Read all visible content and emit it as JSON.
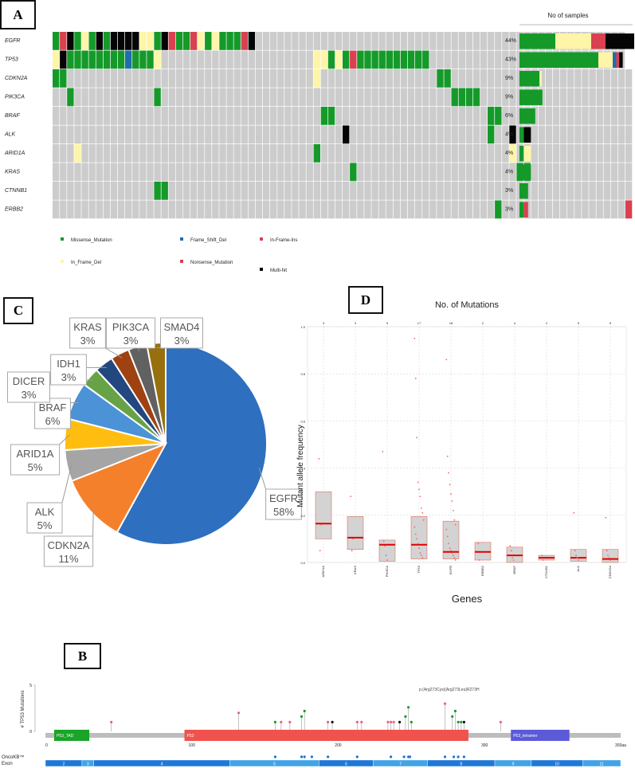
{
  "panels": {
    "A": "A",
    "B": "B",
    "C": "C",
    "D": "D"
  },
  "oncoplot": {
    "genes": [
      "EGFR",
      "TP53",
      "CDKN2A",
      "PIK3CA",
      "BRAF",
      "ALK",
      "ARID1A",
      "KRAS",
      "CTNNB1",
      "ERBB2"
    ],
    "percent": [
      "44%",
      "43%",
      "9%",
      "9%",
      "6%",
      "4%",
      "4%",
      "4%",
      "3%",
      "3%"
    ],
    "bar_title": "No of samples",
    "bars": [
      {
        "gene": "EGFR",
        "segments": [
          {
            "type": "Missense_Mutation",
            "n": 5
          },
          {
            "type": "In_Frame_Del",
            "n": 5
          },
          {
            "type": "Nonsense_Mutation",
            "n": 2
          },
          {
            "type": "Multi-hit",
            "n": 4
          }
        ]
      },
      {
        "gene": "TP53",
        "segments": [
          {
            "type": "Missense_Mutation",
            "n": 11
          },
          {
            "type": "In_Frame_Del",
            "n": 2
          },
          {
            "type": "Frame_Shift_Del",
            "n": 0.5
          },
          {
            "type": "Nonsense_Mutation",
            "n": 0.4
          },
          {
            "type": "Multi-hit",
            "n": 0.5
          }
        ]
      },
      {
        "gene": "CDKN2A",
        "segments": [
          {
            "type": "Missense_Mutation",
            "n": 2.8
          },
          {
            "type": "In_Frame_Del",
            "n": 0.3
          }
        ]
      },
      {
        "gene": "PIK3CA",
        "segments": [
          {
            "type": "Missense_Mutation",
            "n": 3.2
          }
        ]
      },
      {
        "gene": "BRAF",
        "segments": [
          {
            "type": "Missense_Mutation",
            "n": 2.2
          }
        ]
      },
      {
        "gene": "ALK",
        "segments": [
          {
            "type": "Missense_Mutation",
            "n": 0.6
          },
          {
            "type": "Multi-hit",
            "n": 1
          }
        ]
      },
      {
        "gene": "ARID1A",
        "segments": [
          {
            "type": "Missense_Mutation",
            "n": 0.6
          },
          {
            "type": "In_Frame_Del",
            "n": 1
          }
        ]
      },
      {
        "gene": "KRAS",
        "segments": [
          {
            "type": "Missense_Mutation",
            "n": 1.6
          }
        ]
      },
      {
        "gene": "CTNNB1",
        "segments": [
          {
            "type": "Missense_Mutation",
            "n": 1.2
          }
        ]
      },
      {
        "gene": "ERBB2",
        "segments": [
          {
            "type": "Missense_Mutation",
            "n": 0.6
          },
          {
            "type": "Nonsense_Mutation",
            "n": 0.6
          }
        ]
      }
    ],
    "legend": [
      {
        "label": "Missense_Mutation",
        "type": "Missense_Mutation"
      },
      {
        "label": "Frame_Shift_Del",
        "type": "Frame_Shift_Del"
      },
      {
        "label": "In-Frame-Ins",
        "type": "Nonsense_Mutation"
      },
      {
        "label": "In_Frame_Del",
        "type": "In_Frame_Del"
      },
      {
        "label": "Nonsense_Mutation",
        "type": "Nonsense_Mutation"
      },
      {
        "label": "Multi-hit",
        "type": "Multi-hit"
      }
    ],
    "colors": {
      "Missense_Mutation": "#159a2a",
      "In_Frame_Del": "#fff5a8",
      "Frame_Shift_Del": "#1f6db0",
      "Nonsense_Mutation": "#d94150",
      "Multi-hit": "#050505",
      "none": "#cccccc"
    },
    "matrix": [
      "GRKGWGKGKKKKWWGKRGGRWGWGGGRKNNNNNNNNNNNNNNNNNNNNNNNNNNNNNNNNNNNNNNNNNNNNNNNNNNN",
      "WKGGGGGGGGFGGGWNNNNNNNNNNNNNNNNNNNNNWWGWGRGGGGGGGGGGNNNNNNNNNNNNNNNNNNNNNNNNNNN",
      "GGNNNNNNNNNNNNNNNNNNNNNNNNNNNNNNNNNNWNNNNNNNNNNNNNNNNGGNNNNNNNNNNNNNNNNNNNNNNNNN",
      "NNGNNNNNNNNNNNGNNNNNNNNNNNNNNNNNNNNNNNNNNNNNNNNNNNNNNNNGGGGNNNNNNNNNNNNNNNNNNNNN",
      "NNNNNNNNNNNNNNNNNNNNNNNNNNNNNNNNNNNNNGGNNNNNNNNNNNNNNNNNNNNNGGNNNNNNNNNNNNNNNNNN",
      "NNNNNNNNNNNNNNNNNNNNNNNNNNNNNNNNNNNNNNNNKNNNNNNNNNNNNNNNNNNNGNNKNNNNNNNNNNNNNNNN",
      "NNNWNNNNNNNNNNNNNNNNNNNNNNNNNNNNNNNNGNNNNNNNNNNNNNNNNNNNNNNNNNNWNNNNNNNNNNNNNNNN",
      "NNNNNNNNNNNNNNNNNNNNNNNNNNNNNNNNNNNNNNNNNGNNNNNNNNNNNNNNNNNNNNNNGGNNNNNNNNNNNNNN",
      "NNNNNNNNNNNNNNGGNNNNNNNNNNNNNNNNNNNNNNNNNNNNNNNNNNNNNNNNNNNNNNNNNNNNNNNNNNNNNNNN",
      "NNNNNNNNNNNNNNNNNNNNNNNNNNNNNNNNNNNNNNNNNNNNNNNNNNNNNNNNNNNNNGNNNNNNNNNNNNNNNNNR"
    ]
  },
  "chart_data": [
    {
      "type": "pie",
      "title": "",
      "labels": [
        "EGFR",
        "CDKN2A",
        "ALK",
        "ARID1A",
        "BRAF",
        "DICER",
        "IDH1",
        "KRAS",
        "PIK3CA",
        "SMAD4"
      ],
      "values": [
        58,
        11,
        5,
        5,
        6,
        3,
        3,
        3,
        3,
        3
      ],
      "display": [
        "58%",
        "11%",
        "5%",
        "5%",
        "6%",
        "3%",
        "3%",
        "3%",
        "3%",
        "3%"
      ],
      "colors": [
        "#2e6fc0",
        "#f4802b",
        "#a5a5a5",
        "#ffbe0f",
        "#4b92d6",
        "#67a346",
        "#23477f",
        "#9e4212",
        "#616161",
        "#976f0d"
      ]
    },
    {
      "type": "box",
      "title": "No. of Mutations",
      "xlabel": "Genes",
      "ylabel": "Mutant allele frequency",
      "ylim": [
        0,
        1.0
      ],
      "yticks": [
        "0.0",
        "0.2",
        "0.4",
        "0.6",
        "0.8",
        "1.0"
      ],
      "categories": [
        "ARID1A",
        "KRAS",
        "PIK3CA",
        "TP53",
        "EGFR",
        "ERBB2",
        "BRAF",
        "CTNNB1",
        "ALK",
        "CDKN2A"
      ],
      "counts": [
        "3",
        "3",
        "5",
        "17",
        "18",
        "2",
        "4",
        "2",
        "5",
        "5"
      ],
      "boxes": [
        {
          "q1": 0.1,
          "median": 0.165,
          "q3": 0.3
        },
        {
          "q1": 0.055,
          "median": 0.105,
          "q3": 0.195
        },
        {
          "q1": 0.005,
          "median": 0.075,
          "q3": 0.095
        },
        {
          "q1": 0.015,
          "median": 0.075,
          "q3": 0.195
        },
        {
          "q1": 0.015,
          "median": 0.045,
          "q3": 0.175
        },
        {
          "q1": 0.01,
          "median": 0.045,
          "q3": 0.085
        },
        {
          "q1": 0.0,
          "median": 0.03,
          "q3": 0.065
        },
        {
          "q1": 0.01,
          "median": 0.02,
          "q3": 0.03
        },
        {
          "q1": 0.005,
          "median": 0.02,
          "q3": 0.055
        },
        {
          "q1": 0.0,
          "median": 0.015,
          "q3": 0.055
        }
      ],
      "points": [
        [
          0.44,
          0.05,
          0.16
        ],
        [
          0.28,
          0.05,
          0.1
        ],
        [
          0.47,
          0.09,
          0.07,
          0.03,
          0.01
        ],
        [
          0.95,
          0.78,
          0.53,
          0.34,
          0.31,
          0.28,
          0.23,
          0.21,
          0.18,
          0.15,
          0.12,
          0.1,
          0.08,
          0.06,
          0.04,
          0.03,
          0.02
        ],
        [
          0.86,
          0.45,
          0.38,
          0.33,
          0.29,
          0.26,
          0.22,
          0.18,
          0.16,
          0.14,
          0.11,
          0.08,
          0.06,
          0.05,
          0.04,
          0.03,
          0.02,
          0.01
        ],
        [
          0.08,
          0.01
        ],
        [
          0.07,
          0.05,
          0.02,
          0.01
        ],
        [
          0.03,
          0.01
        ],
        [
          0.21,
          0.05,
          0.03,
          0.02,
          0.01
        ],
        [
          0.19,
          0.05,
          0.03,
          0.02,
          0.01
        ]
      ]
    },
    {
      "type": "lollipop",
      "ylabel": "# TP53 Mutations",
      "yticks": [
        "0",
        "5"
      ],
      "ymax": 5,
      "xmax": 393,
      "xticks": [
        {
          "v": 0,
          "label": "0"
        },
        {
          "v": 100,
          "label": "100"
        },
        {
          "v": 200,
          "label": "200"
        },
        {
          "v": 300,
          "label": "300"
        },
        {
          "v": 393,
          "label": "393aa"
        }
      ],
      "domains": [
        {
          "name": "P53_TAD",
          "start": 6,
          "end": 30,
          "color": "#1aa428"
        },
        {
          "name": "P53",
          "start": 95,
          "end": 289,
          "color": "#f0524e"
        },
        {
          "name": "P53_tetramer",
          "start": 318,
          "end": 358,
          "color": "#5b5bd8"
        }
      ],
      "annotation": "p.(Arg273Cys)(Arg273Leu)R273H",
      "lollipops": [
        {
          "pos": 45,
          "n": 1,
          "color": "#e8608a"
        },
        {
          "pos": 132,
          "n": 2,
          "color": "#e8608a"
        },
        {
          "pos": 157,
          "n": 1,
          "color": "#1a9a2a"
        },
        {
          "pos": 161,
          "n": 1,
          "color": "#e8608a"
        },
        {
          "pos": 167,
          "n": 1,
          "color": "#e8608a"
        },
        {
          "pos": 175,
          "n": 1.6,
          "color": "#1a9a2a"
        },
        {
          "pos": 177,
          "n": 2.2,
          "color": "#1a9a2a"
        },
        {
          "pos": 193,
          "n": 1,
          "color": "#e8608a"
        },
        {
          "pos": 196,
          "n": 1,
          "color": "#111111"
        },
        {
          "pos": 213,
          "n": 1,
          "color": "#e8608a"
        },
        {
          "pos": 216,
          "n": 1,
          "color": "#e8608a"
        },
        {
          "pos": 234,
          "n": 1,
          "color": "#e8608a"
        },
        {
          "pos": 236,
          "n": 1,
          "color": "#e8608a"
        },
        {
          "pos": 238,
          "n": 1,
          "color": "#e8608a"
        },
        {
          "pos": 242,
          "n": 1,
          "color": "#111111"
        },
        {
          "pos": 246,
          "n": 1.6,
          "color": "#1a9a2a"
        },
        {
          "pos": 248,
          "n": 2.6,
          "color": "#1a9a2a"
        },
        {
          "pos": 250,
          "n": 1,
          "color": "#1a9a2a"
        },
        {
          "pos": 273,
          "n": 3,
          "color": "#e8608a"
        },
        {
          "pos": 278,
          "n": 1.6,
          "color": "#1a9a2a"
        },
        {
          "pos": 280,
          "n": 2.2,
          "color": "#1a9a2a"
        },
        {
          "pos": 282,
          "n": 1,
          "color": "#1a9a2a"
        },
        {
          "pos": 284,
          "n": 1,
          "color": "#1a9a2a"
        },
        {
          "pos": 286,
          "n": 1,
          "color": "#111111"
        },
        {
          "pos": 311,
          "n": 1,
          "color": "#e8608a"
        }
      ],
      "oncokb_label": "OncoKB™",
      "oncokb": [
        157,
        175,
        177,
        182,
        193,
        213,
        236,
        245,
        248,
        249,
        273,
        279,
        282,
        286
      ],
      "exon_label": "Exon",
      "exons": [
        {
          "label": "2",
          "start": 0,
          "end": 25
        },
        {
          "label": "3",
          "start": 25,
          "end": 33
        },
        {
          "label": "4",
          "start": 33,
          "end": 126
        },
        {
          "label": "5",
          "start": 126,
          "end": 187
        },
        {
          "label": "6",
          "start": 187,
          "end": 224
        },
        {
          "label": "7",
          "start": 224,
          "end": 261
        },
        {
          "label": "8",
          "start": 261,
          "end": 307
        },
        {
          "label": "9",
          "start": 307,
          "end": 332
        },
        {
          "label": "10",
          "start": 332,
          "end": 367
        },
        {
          "label": "11",
          "start": 367,
          "end": 393
        }
      ]
    }
  ]
}
